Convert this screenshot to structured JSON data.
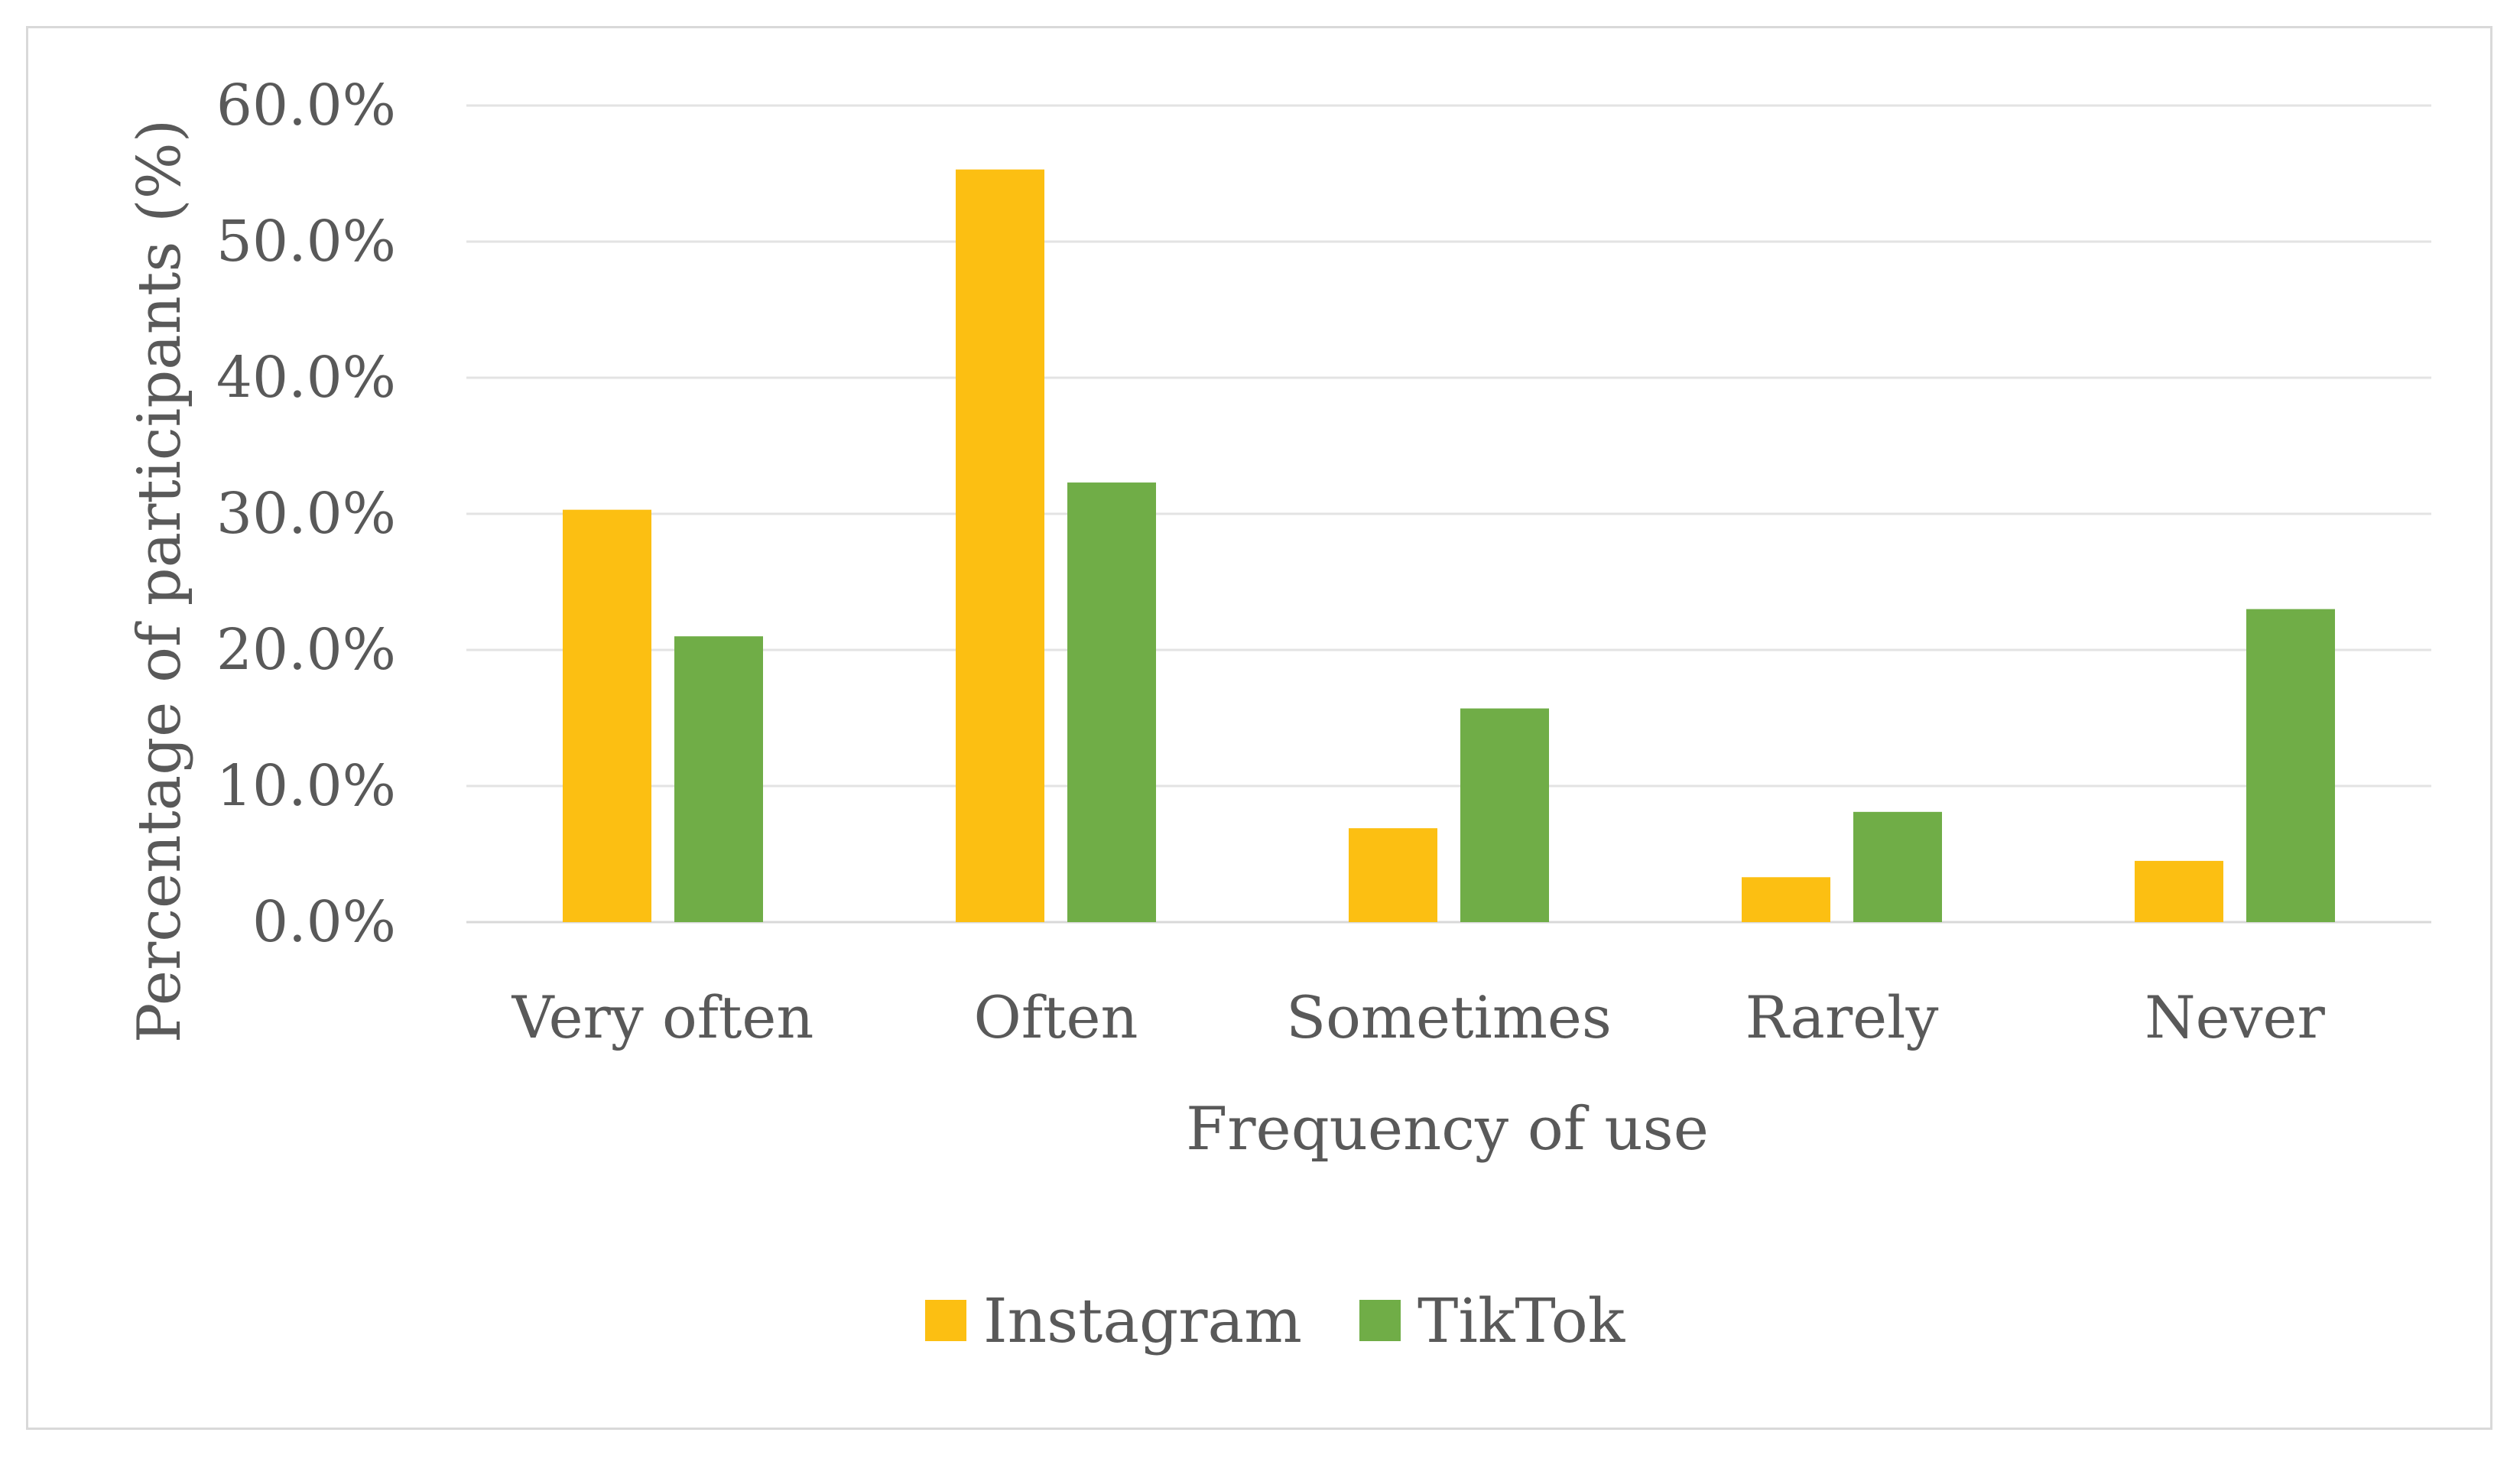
{
  "chart_data": {
    "type": "bar",
    "title": "",
    "xlabel": "Frequency of use",
    "ylabel": "Percentage of participants (%)",
    "categories": [
      "Very often",
      "Often",
      "Sometimes",
      "Rarely",
      "Never"
    ],
    "series": [
      {
        "name": "Instagram",
        "color": "#fcbf12",
        "values": [
          30.3,
          55.3,
          6.9,
          3.3,
          4.5
        ]
      },
      {
        "name": "TikTok",
        "color": "#70ad47",
        "values": [
          21.0,
          32.3,
          15.7,
          8.1,
          23.0
        ]
      }
    ],
    "ylim": [
      0,
      60
    ],
    "yticks": [
      0,
      10,
      20,
      30,
      40,
      50,
      60
    ],
    "ytick_labels": [
      "0.0%",
      "10.0%",
      "20.0%",
      "30.0%",
      "40.0%",
      "50.0%",
      "60.0%"
    ],
    "grid": true,
    "legend_position": "bottom-center"
  }
}
